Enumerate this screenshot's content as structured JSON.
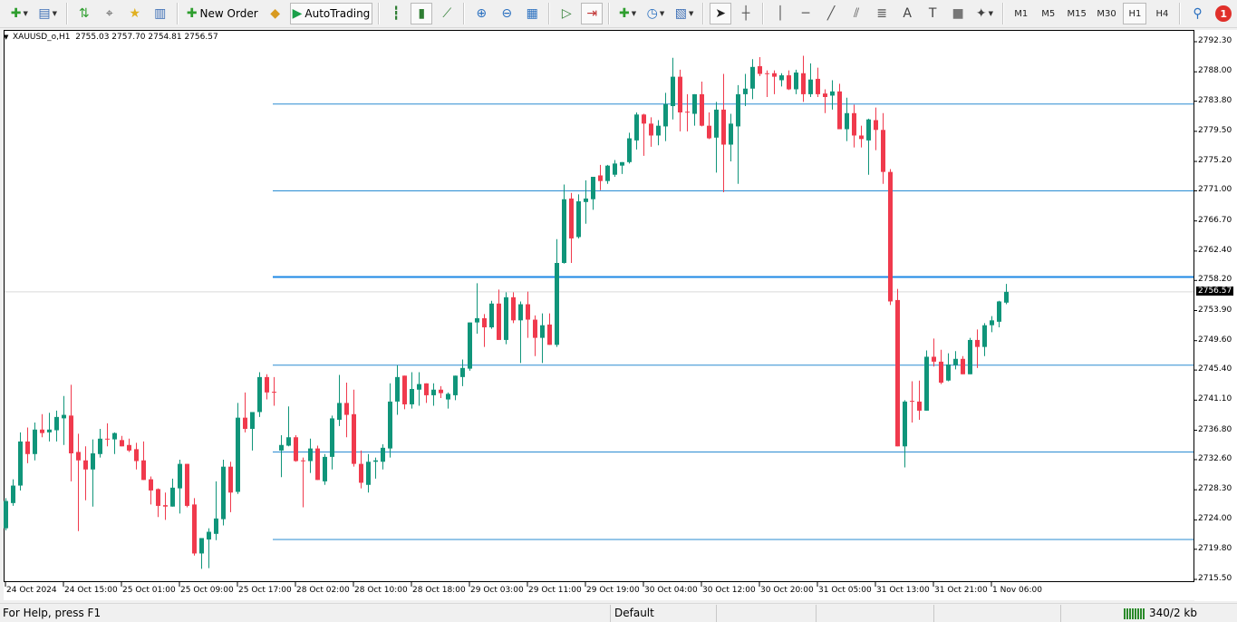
{
  "toolbar": {
    "items": [
      {
        "icon": "new-chart",
        "glyph": "✚",
        "color": "#2e9e2e",
        "dropdown": true
      },
      {
        "icon": "profiles",
        "glyph": "▤",
        "color": "#3a6db5",
        "dropdown": true
      },
      {
        "sep": true
      },
      {
        "icon": "market-watch",
        "glyph": "⇅",
        "color": "#2e9e2e"
      },
      {
        "icon": "data-window",
        "glyph": "⌖",
        "color": "#555"
      },
      {
        "icon": "navigator",
        "glyph": "★",
        "color": "#e0b020"
      },
      {
        "icon": "terminal",
        "glyph": "▥",
        "color": "#3a6db5"
      },
      {
        "sep": true
      },
      {
        "icon": "new-order",
        "glyph": "✚",
        "color": "#2e9e2e",
        "label": "New Order"
      },
      {
        "icon": "metaeditor",
        "glyph": "◆",
        "color": "#d89a20"
      },
      {
        "icon": "autotrading",
        "glyph": "▶",
        "color": "#1aa04a",
        "label": "AutoTrading",
        "pressed": true
      },
      {
        "sep": true
      },
      {
        "icon": "bar-chart",
        "glyph": "┇",
        "color": "#2e7d32"
      },
      {
        "icon": "candlestick-chart",
        "glyph": "▮",
        "color": "#2e7d32",
        "pressed": true
      },
      {
        "icon": "line-chart",
        "glyph": "⟋",
        "color": "#2e7d32"
      },
      {
        "sep": true
      },
      {
        "icon": "zoom-in",
        "glyph": "⊕",
        "color": "#2a70c0"
      },
      {
        "icon": "zoom-out",
        "glyph": "⊖",
        "color": "#2a70c0"
      },
      {
        "icon": "tile-windows",
        "glyph": "▦",
        "color": "#2a70c0"
      },
      {
        "sep": true
      },
      {
        "icon": "auto-scroll",
        "glyph": "▷",
        "color": "#2e7d32"
      },
      {
        "icon": "chart-shift",
        "glyph": "⇥",
        "color": "#c03030",
        "pressed": true
      },
      {
        "sep": true
      },
      {
        "icon": "indicators",
        "glyph": "✚",
        "color": "#2e9e2e",
        "dropdown": true
      },
      {
        "icon": "periods",
        "glyph": "◷",
        "color": "#2a70c0",
        "dropdown": true
      },
      {
        "icon": "templates",
        "glyph": "▧",
        "color": "#3a6db5",
        "dropdown": true
      },
      {
        "sep": true
      },
      {
        "icon": "cursor",
        "glyph": "➤",
        "color": "#222",
        "pressed": true
      },
      {
        "icon": "crosshair",
        "glyph": "┼",
        "color": "#555"
      },
      {
        "sep": true
      },
      {
        "icon": "vertical-line",
        "glyph": "│",
        "color": "#555"
      },
      {
        "icon": "horizontal-line",
        "glyph": "─",
        "color": "#555"
      },
      {
        "icon": "trendline",
        "glyph": "╱",
        "color": "#555"
      },
      {
        "icon": "equidistant-channel",
        "glyph": "⫽",
        "color": "#555"
      },
      {
        "icon": "fibonacci-retracement",
        "glyph": "≣",
        "color": "#555"
      },
      {
        "icon": "text",
        "glyph": "A",
        "color": "#444"
      },
      {
        "icon": "text-label",
        "glyph": "T",
        "color": "#444"
      },
      {
        "icon": "rectangle",
        "glyph": "■",
        "color": "#777"
      },
      {
        "icon": "arrows",
        "glyph": "✦",
        "color": "#444",
        "dropdown": true
      },
      {
        "sep": true
      },
      {
        "tf": "M1"
      },
      {
        "tf": "M5"
      },
      {
        "tf": "M15"
      },
      {
        "tf": "M30"
      },
      {
        "tf": "H1",
        "pressed": true
      },
      {
        "tf": "H4"
      },
      {
        "sep": true
      },
      {
        "icon": "search",
        "glyph": "⚲",
        "color": "#2a70c0"
      },
      {
        "icon": "notifications",
        "badge": "1"
      }
    ]
  },
  "chart": {
    "title": "XAUUSD_o,H1  2755.03 2757.70 2754.81 2756.57",
    "current_price": "2756.57",
    "colors": {
      "bull": "#10957a",
      "bear": "#f03a4d",
      "level": "#2a8cd2",
      "level_main": "#1e88e5",
      "price_line": "#d9d9d9"
    }
  },
  "status": {
    "help": "For Help, press F1",
    "profile": "Default",
    "traffic": "340/2 kb"
  },
  "chart_data": {
    "type": "candlestick",
    "symbol": "XAUUSD_o",
    "timeframe": "H1",
    "ylim": [
      2715.5,
      2792.3
    ],
    "y_ticks": [
      "2792.30",
      "2788.00",
      "2783.80",
      "2779.50",
      "2775.20",
      "2771.00",
      "2766.70",
      "2762.40",
      "2758.20",
      "2753.90",
      "2749.60",
      "2745.40",
      "2741.10",
      "2736.80",
      "2732.60",
      "2728.30",
      "2724.00",
      "2719.80",
      "2715.50"
    ],
    "x_tick_labels": [
      "24 Oct 2024",
      "24 Oct 15:00",
      "25 Oct 01:00",
      "25 Oct 09:00",
      "25 Oct 17:00",
      "28 Oct 02:00",
      "28 Oct 10:00",
      "28 Oct 18:00",
      "29 Oct 03:00",
      "29 Oct 11:00",
      "29 Oct 19:00",
      "30 Oct 04:00",
      "30 Oct 12:00",
      "30 Oct 20:00",
      "31 Oct 05:00",
      "31 Oct 13:00",
      "31 Oct 21:00",
      "1 Nov 06:00"
    ],
    "bars_per_label": 8,
    "levels": [
      2783.4,
      2771.0,
      2746.1,
      2733.7,
      2721.2
    ],
    "main_level": 2758.7,
    "ohlc": [
      [
        2722.8,
        2727.1,
        2722.5,
        2726.7
      ],
      [
        2726.4,
        2729.8,
        2726.0,
        2728.9
      ],
      [
        2728.9,
        2736.5,
        2728.2,
        2735.2
      ],
      [
        2735.2,
        2737.2,
        2732.1,
        2733.4
      ],
      [
        2733.4,
        2737.9,
        2732.5,
        2736.9
      ],
      [
        2736.9,
        2739.1,
        2735.8,
        2736.4
      ],
      [
        2736.5,
        2739.3,
        2735.2,
        2736.9
      ],
      [
        2736.8,
        2739.6,
        2735.2,
        2738.7
      ],
      [
        2738.5,
        2741.7,
        2734.7,
        2739.0
      ],
      [
        2738.9,
        2743.3,
        2729.5,
        2733.5
      ],
      [
        2733.7,
        2736.3,
        2722.4,
        2732.5
      ],
      [
        2732.5,
        2734.5,
        2726.8,
        2731.2
      ],
      [
        2731.2,
        2735.5,
        2725.9,
        2733.5
      ],
      [
        2733.4,
        2737.0,
        2732.9,
        2735.6
      ],
      [
        2735.6,
        2737.8,
        2734.5,
        2735.5
      ],
      [
        2735.5,
        2736.5,
        2733.4,
        2736.4
      ],
      [
        2735.4,
        2736.0,
        2734.5,
        2734.5
      ],
      [
        2734.7,
        2735.6,
        2733.7,
        2733.9
      ],
      [
        2734.1,
        2735.0,
        2731.2,
        2732.4
      ],
      [
        2732.5,
        2735.2,
        2729.7,
        2729.7
      ],
      [
        2729.8,
        2730.2,
        2726.2,
        2728.2
      ],
      [
        2728.4,
        2728.5,
        2724.4,
        2726.0
      ],
      [
        2726.1,
        2727.9,
        2724.0,
        2725.9
      ],
      [
        2725.9,
        2729.9,
        2725.9,
        2728.6
      ],
      [
        2728.5,
        2732.6,
        2724.9,
        2732.0
      ],
      [
        2732.0,
        2732.0,
        2725.8,
        2726.0
      ],
      [
        2726.2,
        2727.1,
        2718.9,
        2719.2
      ],
      [
        2719.2,
        2721.4,
        2717.0,
        2721.4
      ],
      [
        2721.2,
        2722.8,
        2717.1,
        2722.3
      ],
      [
        2722.0,
        2729.5,
        2721.1,
        2724.2
      ],
      [
        2724.1,
        2732.6,
        2723.2,
        2731.6
      ],
      [
        2731.6,
        2732.3,
        2725.1,
        2727.9
      ],
      [
        2728.0,
        2740.7,
        2727.7,
        2738.6
      ],
      [
        2738.6,
        2742.2,
        2736.5,
        2737.0
      ],
      [
        2737.0,
        2739.4,
        2733.9,
        2739.4
      ],
      [
        2739.4,
        2745.1,
        2738.7,
        2744.4
      ],
      [
        2744.4,
        2744.8,
        2741.2,
        2742.2
      ],
      [
        2742.3,
        2744.4,
        2740.3,
        2742.2
      ],
      [
        2733.9,
        2736.1,
        2730.1,
        2734.7
      ],
      [
        2734.6,
        2740.2,
        2734.5,
        2735.8
      ],
      [
        2735.8,
        2736.1,
        2732.3,
        2732.4
      ],
      [
        2732.5,
        2732.9,
        2725.8,
        2732.4
      ],
      [
        2732.4,
        2735.6,
        2730.7,
        2734.2
      ],
      [
        2734.2,
        2734.6,
        2729.7,
        2729.7
      ],
      [
        2729.5,
        2733.4,
        2729.0,
        2733.0
      ],
      [
        2733.0,
        2738.9,
        2731.2,
        2738.5
      ],
      [
        2738.3,
        2744.7,
        2737.4,
        2740.7
      ],
      [
        2740.7,
        2743.6,
        2735.8,
        2739.0
      ],
      [
        2739.1,
        2742.6,
        2731.6,
        2732.0
      ],
      [
        2732.0,
        2733.9,
        2728.5,
        2729.3
      ],
      [
        2729.0,
        2733.4,
        2727.9,
        2732.3
      ],
      [
        2732.3,
        2732.9,
        2729.9,
        2732.5
      ],
      [
        2732.3,
        2734.8,
        2731.2,
        2734.3
      ],
      [
        2734.2,
        2743.5,
        2732.9,
        2740.9
      ],
      [
        2740.9,
        2746.1,
        2739.0,
        2744.4
      ],
      [
        2744.6,
        2744.6,
        2739.8,
        2740.5
      ],
      [
        2740.5,
        2745.1,
        2739.9,
        2742.7
      ],
      [
        2742.6,
        2745.1,
        2740.3,
        2743.4
      ],
      [
        2743.5,
        2743.5,
        2740.7,
        2741.8
      ],
      [
        2741.8,
        2743.5,
        2740.3,
        2742.6
      ],
      [
        2742.6,
        2743.1,
        2741.4,
        2742.1
      ],
      [
        2741.2,
        2742.2,
        2739.9,
        2742.0
      ],
      [
        2741.8,
        2744.6,
        2741.1,
        2744.6
      ],
      [
        2744.4,
        2746.9,
        2743.1,
        2745.7
      ],
      [
        2745.6,
        2752.2,
        2745.3,
        2752.2
      ],
      [
        2752.2,
        2757.8,
        2750.6,
        2752.8
      ],
      [
        2752.8,
        2753.4,
        2748.7,
        2751.5
      ],
      [
        2751.5,
        2755.3,
        2751.3,
        2754.9
      ],
      [
        2754.9,
        2756.9,
        2749.7,
        2749.7
      ],
      [
        2749.7,
        2756.5,
        2749.1,
        2755.8
      ],
      [
        2755.8,
        2756.5,
        2752.1,
        2752.5
      ],
      [
        2752.5,
        2755.2,
        2746.4,
        2754.8
      ],
      [
        2754.8,
        2756.6,
        2750.0,
        2752.6
      ],
      [
        2752.6,
        2753.2,
        2747.4,
        2750.0
      ],
      [
        2750.0,
        2753.5,
        2746.4,
        2751.8
      ],
      [
        2751.9,
        2753.5,
        2749.0,
        2749.0
      ],
      [
        2749.0,
        2764.1,
        2748.7,
        2760.7
      ],
      [
        2760.7,
        2771.9,
        2760.6,
        2769.8
      ],
      [
        2769.9,
        2770.7,
        2760.7,
        2764.2
      ],
      [
        2764.4,
        2770.5,
        2764.2,
        2769.5
      ],
      [
        2769.4,
        2772.5,
        2766.3,
        2769.9
      ],
      [
        2769.8,
        2773.0,
        2768.3,
        2773.0
      ],
      [
        2773.2,
        2774.7,
        2771.1,
        2772.4
      ],
      [
        2772.4,
        2774.7,
        2772.0,
        2774.6
      ],
      [
        2773.3,
        2775.4,
        2773.0,
        2774.9
      ],
      [
        2774.6,
        2775.1,
        2773.4,
        2775.1
      ],
      [
        2775.1,
        2779.3,
        2774.9,
        2778.5
      ],
      [
        2778.2,
        2782.2,
        2776.9,
        2781.9
      ],
      [
        2781.9,
        2782.0,
        2776.0,
        2780.6
      ],
      [
        2780.6,
        2781.5,
        2777.3,
        2778.9
      ],
      [
        2778.9,
        2781.1,
        2777.5,
        2780.3
      ],
      [
        2780.2,
        2785.0,
        2778.1,
        2783.4
      ],
      [
        2783.1,
        2790.0,
        2781.2,
        2787.3
      ],
      [
        2787.3,
        2788.3,
        2779.5,
        2782.2
      ],
      [
        2782.3,
        2784.8,
        2779.5,
        2782.2
      ],
      [
        2782.0,
        2784.8,
        2780.3,
        2784.8
      ],
      [
        2784.8,
        2786.6,
        2780.2,
        2780.3
      ],
      [
        2780.3,
        2782.2,
        2778.4,
        2778.5
      ],
      [
        2778.6,
        2783.7,
        2773.6,
        2782.6
      ],
      [
        2782.6,
        2787.7,
        2770.8,
        2777.6
      ],
      [
        2777.6,
        2782.0,
        2775.2,
        2780.6
      ],
      [
        2780.2,
        2786.1,
        2772.0,
        2784.8
      ],
      [
        2784.8,
        2787.7,
        2783.1,
        2785.6
      ],
      [
        2785.6,
        2789.8,
        2784.1,
        2788.7
      ],
      [
        2788.8,
        2790.1,
        2787.4,
        2787.7
      ],
      [
        2787.8,
        2788.2,
        2784.4,
        2787.7
      ],
      [
        2787.8,
        2788.2,
        2784.8,
        2787.3
      ],
      [
        2786.8,
        2787.8,
        2785.9,
        2787.5
      ],
      [
        2787.5,
        2788.2,
        2785.4,
        2785.5
      ],
      [
        2785.5,
        2788.3,
        2784.8,
        2787.9
      ],
      [
        2787.8,
        2790.3,
        2783.7,
        2784.8
      ],
      [
        2784.8,
        2789.2,
        2784.4,
        2786.9
      ],
      [
        2787.0,
        2788.6,
        2784.4,
        2784.8
      ],
      [
        2784.9,
        2785.5,
        2782.1,
        2784.4
      ],
      [
        2784.6,
        2786.8,
        2782.6,
        2785.2
      ],
      [
        2785.2,
        2786.3,
        2779.8,
        2779.8
      ],
      [
        2779.8,
        2784.3,
        2778.1,
        2782.1
      ],
      [
        2782.1,
        2783.3,
        2777.2,
        2778.9
      ],
      [
        2778.9,
        2780.3,
        2777.2,
        2778.4
      ],
      [
        2778.2,
        2781.3,
        2773.3,
        2781.2
      ],
      [
        2781.1,
        2782.9,
        2776.8,
        2779.7
      ],
      [
        2779.7,
        2782.1,
        2772.0,
        2773.7
      ],
      [
        2773.7,
        2774.1,
        2754.7,
        2755.2
      ],
      [
        2755.4,
        2757.0,
        2734.5,
        2734.5
      ],
      [
        2734.5,
        2741.1,
        2731.5,
        2740.9
      ],
      [
        2741.0,
        2743.8,
        2737.9,
        2740.9
      ],
      [
        2740.9,
        2743.9,
        2738.3,
        2739.6
      ],
      [
        2739.6,
        2748.2,
        2739.6,
        2747.3
      ],
      [
        2747.3,
        2749.9,
        2745.9,
        2746.6
      ],
      [
        2746.6,
        2748.3,
        2743.4,
        2743.6
      ],
      [
        2743.9,
        2747.8,
        2743.8,
        2746.2
      ],
      [
        2746.1,
        2748.1,
        2745.5,
        2747.0
      ],
      [
        2747.0,
        2747.4,
        2744.8,
        2744.8
      ],
      [
        2744.8,
        2750.0,
        2744.8,
        2749.7
      ],
      [
        2749.7,
        2751.2,
        2745.7,
        2748.7
      ],
      [
        2748.7,
        2752.1,
        2747.4,
        2751.8
      ],
      [
        2751.8,
        2753.1,
        2750.8,
        2752.5
      ],
      [
        2752.3,
        2755.3,
        2751.5,
        2755.2
      ],
      [
        2755.03,
        2757.7,
        2754.81,
        2756.57
      ]
    ]
  }
}
